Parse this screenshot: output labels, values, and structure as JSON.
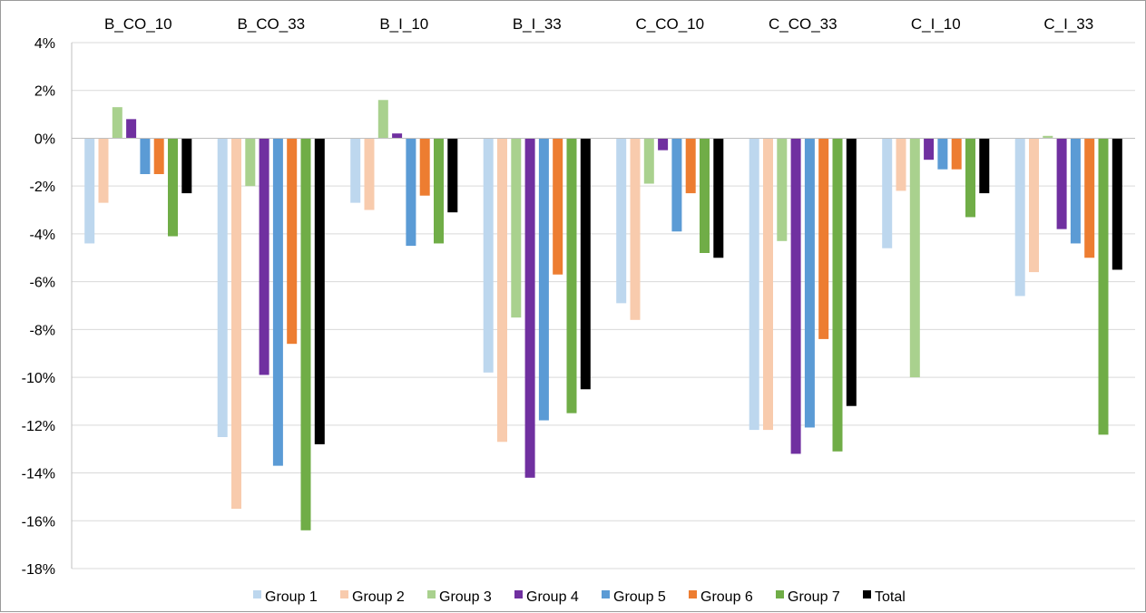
{
  "chart_data": {
    "type": "bar",
    "title": "",
    "xlabel": "",
    "ylabel": "",
    "ylim": [
      -18,
      4
    ],
    "y_ticks": [
      4,
      2,
      0,
      -2,
      -4,
      -6,
      -8,
      -10,
      -12,
      -14,
      -16,
      -18
    ],
    "y_tick_format": "%",
    "grid": true,
    "category_label_position": "top",
    "legend_position": "bottom",
    "categories": [
      "B_CO_10",
      "B_CO_33",
      "B_I_10",
      "B_I_33",
      "C_CO_10",
      "C_CO_33",
      "C_I_10",
      "C_I_33"
    ],
    "series": [
      {
        "name": "Group 1",
        "color": "#bdd7ee",
        "values": [
          -4.4,
          -12.5,
          -2.7,
          -9.8,
          -6.9,
          -12.2,
          -4.6,
          -6.6
        ]
      },
      {
        "name": "Group 2",
        "color": "#f8cbad",
        "values": [
          -2.7,
          -15.5,
          -3.0,
          -12.7,
          -7.6,
          -12.2,
          -2.2,
          -5.6
        ]
      },
      {
        "name": "Group 3",
        "color": "#a9d18e",
        "values": [
          1.3,
          -2.0,
          1.6,
          -7.5,
          -1.9,
          -4.3,
          -10.0,
          0.1
        ]
      },
      {
        "name": "Group 4",
        "color": "#7030a0",
        "values": [
          0.8,
          -9.9,
          0.2,
          -14.2,
          -0.5,
          -13.2,
          -0.9,
          -3.8
        ]
      },
      {
        "name": "Group 5",
        "color": "#5b9bd5",
        "values": [
          -1.5,
          -13.7,
          -4.5,
          -11.8,
          -3.9,
          -12.1,
          -1.3,
          -4.4
        ]
      },
      {
        "name": "Group 6",
        "color": "#ed7d31",
        "values": [
          -1.5,
          -8.6,
          -2.4,
          -5.7,
          -2.3,
          -8.4,
          -1.3,
          -5.0
        ]
      },
      {
        "name": "Group 7",
        "color": "#70ad47",
        "values": [
          -4.1,
          -16.4,
          -4.4,
          -11.5,
          -4.8,
          -13.1,
          -3.3,
          -12.4
        ]
      },
      {
        "name": "Total",
        "color": "#000000",
        "values": [
          -2.3,
          -12.8,
          -3.1,
          -10.5,
          -5.0,
          -11.2,
          -2.3,
          -5.5
        ]
      }
    ]
  }
}
